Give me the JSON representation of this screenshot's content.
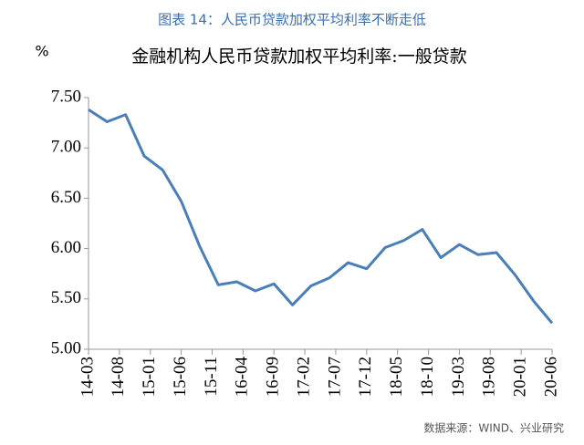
{
  "chart_data": {
    "type": "line",
    "title": "图表 14：人民币贷款加权平均利率不断走低",
    "subtitle": "金融机构人民币贷款加权平均利率:一般贷款",
    "y_label": "%",
    "source": "数据来源：WIND、兴业研究",
    "x": [
      "14-03",
      "14-06",
      "14-09",
      "14-12",
      "15-03",
      "15-06",
      "15-09",
      "15-12",
      "16-03",
      "16-06",
      "16-09",
      "16-12",
      "17-03",
      "17-06",
      "17-09",
      "17-12",
      "18-03",
      "18-06",
      "18-09",
      "18-12",
      "19-03",
      "19-06",
      "19-09",
      "19-12",
      "20-03",
      "20-06"
    ],
    "series": [
      {
        "name": "金融机构人民币贷款加权平均利率:一般贷款",
        "color": "#4a7ebb",
        "values": [
          7.38,
          7.26,
          7.33,
          6.92,
          6.78,
          6.47,
          6.02,
          5.64,
          5.67,
          5.58,
          5.65,
          5.44,
          5.63,
          5.71,
          5.86,
          5.8,
          6.01,
          6.08,
          6.19,
          5.91,
          6.04,
          5.94,
          5.96,
          5.74,
          5.48,
          5.26
        ]
      }
    ],
    "xticks": [
      "14-03",
      "14-08",
      "15-01",
      "15-06",
      "15-11",
      "16-04",
      "16-09",
      "17-02",
      "17-07",
      "17-12",
      "18-05",
      "18-10",
      "19-03",
      "19-08",
      "20-01",
      "20-06"
    ],
    "ylim": [
      5,
      7.5
    ],
    "yticks": [
      {
        "value": 5,
        "label": "5.00"
      },
      {
        "value": 5.5,
        "label": "5.50"
      },
      {
        "value": 6,
        "label": "6.00"
      },
      {
        "value": 6.5,
        "label": "6.50"
      },
      {
        "value": 7,
        "label": "7.00"
      },
      {
        "value": 7.5,
        "label": "7.50"
      }
    ],
    "grid": false
  }
}
